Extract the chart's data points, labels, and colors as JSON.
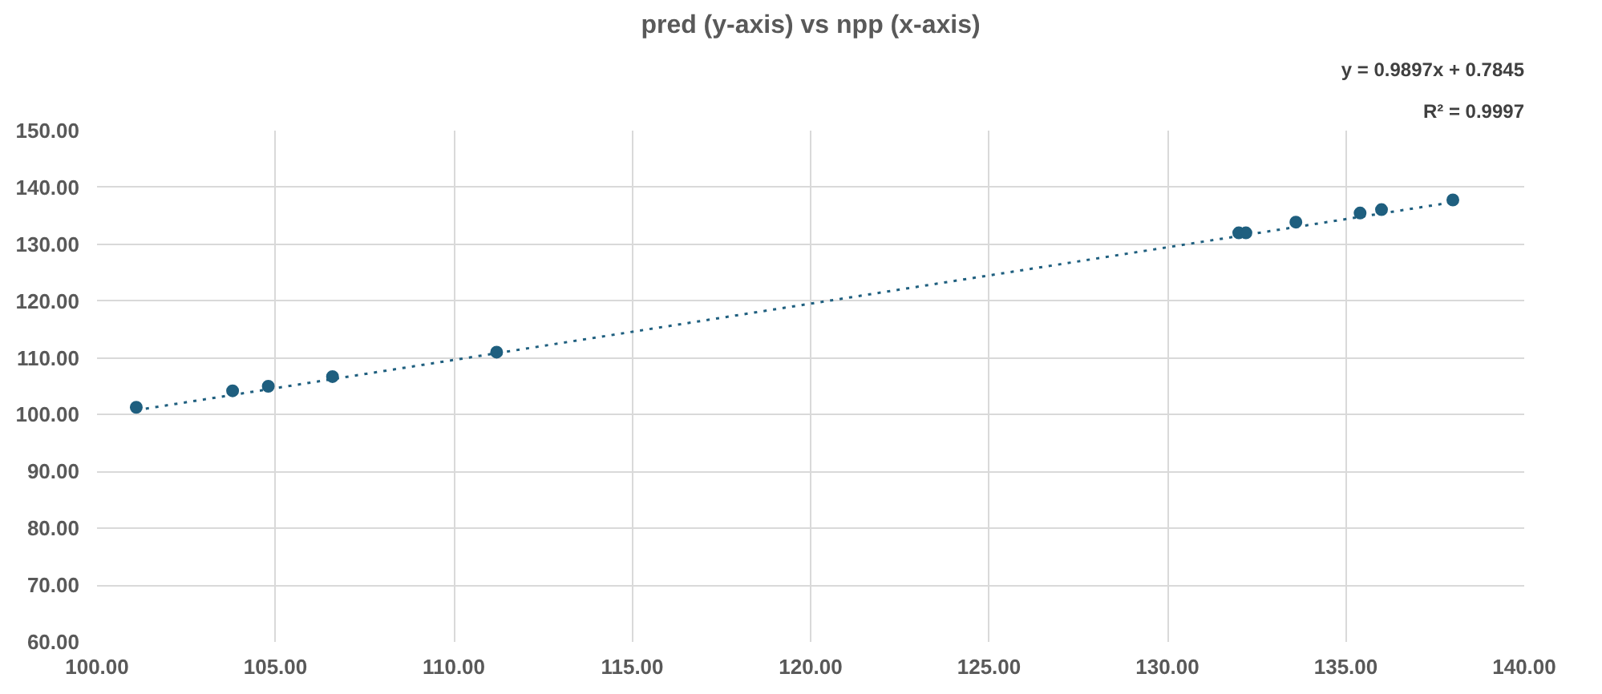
{
  "chart_data": {
    "type": "scatter",
    "title": "pred (y-axis) vs npp (x-axis)",
    "annotations": [
      "y = 0.9897x + 0.7845",
      "R² = 0.9997"
    ],
    "x": [
      101.1,
      103.8,
      104.8,
      106.6,
      111.2,
      132.0,
      132.2,
      133.6,
      135.4,
      136.0,
      138.0
    ],
    "series": [
      {
        "color": "#1f5f7f",
        "marker": "circle",
        "values": [
          101.3,
          104.2,
          105.0,
          106.7,
          111.0,
          132.0,
          132.0,
          133.9,
          135.5,
          136.1,
          137.8
        ]
      },
      {
        "type": "line",
        "color": "#1f5f7f",
        "line_style": "dotted",
        "marker": "none",
        "x": [
          101.1,
          138.0
        ],
        "values": [
          100.8,
          137.4
        ]
      }
    ],
    "xlim": [
      100,
      140
    ],
    "ylim": [
      60,
      150
    ],
    "xticks": [
      {
        "value": 100,
        "label": "100.00"
      },
      {
        "value": 105,
        "label": "105.00"
      },
      {
        "value": 110,
        "label": "110.00"
      },
      {
        "value": 115,
        "label": "115.00"
      },
      {
        "value": 120,
        "label": "120.00"
      },
      {
        "value": 125,
        "label": "125.00"
      },
      {
        "value": 130,
        "label": "130.00"
      },
      {
        "value": 135,
        "label": "135.00"
      },
      {
        "value": 140,
        "label": "140.00"
      }
    ],
    "yticks": [
      {
        "value": 60,
        "label": "60.00"
      },
      {
        "value": 70,
        "label": "70.00"
      },
      {
        "value": 80,
        "label": "80.00"
      },
      {
        "value": 90,
        "label": "90.00"
      },
      {
        "value": 100,
        "label": "100.00"
      },
      {
        "value": 110,
        "label": "110.00"
      },
      {
        "value": 120,
        "label": "120.00"
      },
      {
        "value": 130,
        "label": "130.00"
      },
      {
        "value": 140,
        "label": "140.00"
      },
      {
        "value": 150,
        "label": "150.00"
      }
    ],
    "grid": true
  }
}
